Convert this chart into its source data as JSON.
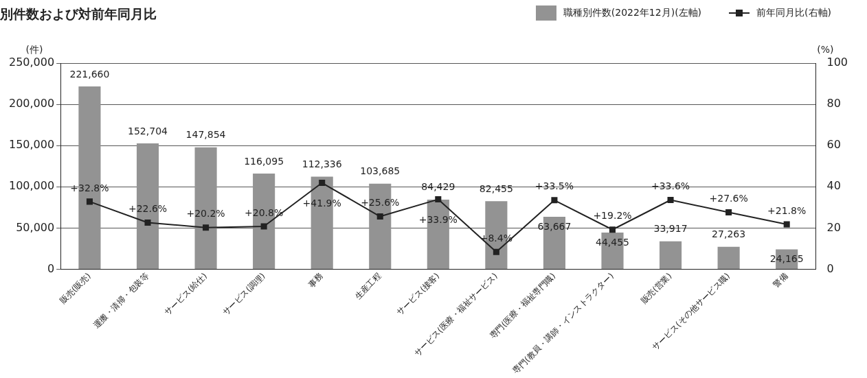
{
  "chart_data": {
    "type": "bar",
    "title": "別件数および対前年同月比",
    "categories": [
      "販売(販売)",
      "運搬・清掃・包装等",
      "サービス(給仕)",
      "サービス(調理)",
      "事務",
      "生産工程",
      "サービス(接客)",
      "サービス(医療・福祉サービス)",
      "専門(医療・福祉専門職)",
      "専門(教員・講師・インストラクター)",
      "販売(営業)",
      "サービス(その他サービス職)",
      "警備"
    ],
    "series": [
      {
        "name": "職種別件数(2022年12月)(左軸)",
        "color": "#939393",
        "values": [
          221660,
          152704,
          147854,
          116095,
          112336,
          103685,
          84429,
          82455,
          63667,
          44455,
          33917,
          27263,
          24165
        ],
        "value_labels": [
          "221,660",
          "152,704",
          "147,854",
          "116,095",
          "112,336",
          "103,685",
          "84,429",
          "82,455",
          "63,667",
          "44,455",
          "33,917",
          "27,263",
          "24,165"
        ]
      },
      {
        "name": "前年同月比(右軸)",
        "type": "line",
        "axis": "y2",
        "color": "#222222",
        "values": [
          32.8,
          22.6,
          20.2,
          20.8,
          41.9,
          25.6,
          33.9,
          8.4,
          33.5,
          19.2,
          33.6,
          27.6,
          21.8
        ],
        "value_labels": [
          "+32.8%",
          "+22.6%",
          "+20.2%",
          "+20.8%",
          "+41.9%",
          "+25.6%",
          "+33.9%",
          "+8.4%",
          "+33.5%",
          "+19.2%",
          "+33.6%",
          "+27.6%",
          "+21.8%"
        ]
      }
    ],
    "ylabel": "(件)",
    "y2label": "(%)",
    "ylim": [
      0,
      250000
    ],
    "yticks": [
      {
        "value": 0,
        "label": "0"
      },
      {
        "value": 50000,
        "label": "50,000"
      },
      {
        "value": 100000,
        "label": "100,000"
      },
      {
        "value": 150000,
        "label": "150,000"
      },
      {
        "value": 200000,
        "label": "200,000"
      },
      {
        "value": 250000,
        "label": "250,000"
      }
    ],
    "y2lim": [
      0,
      100
    ],
    "y2ticks": [
      0,
      20,
      40,
      60,
      80,
      100
    ],
    "grid": "y",
    "legend": "top right",
    "marker": "square",
    "line_style": "solid"
  }
}
